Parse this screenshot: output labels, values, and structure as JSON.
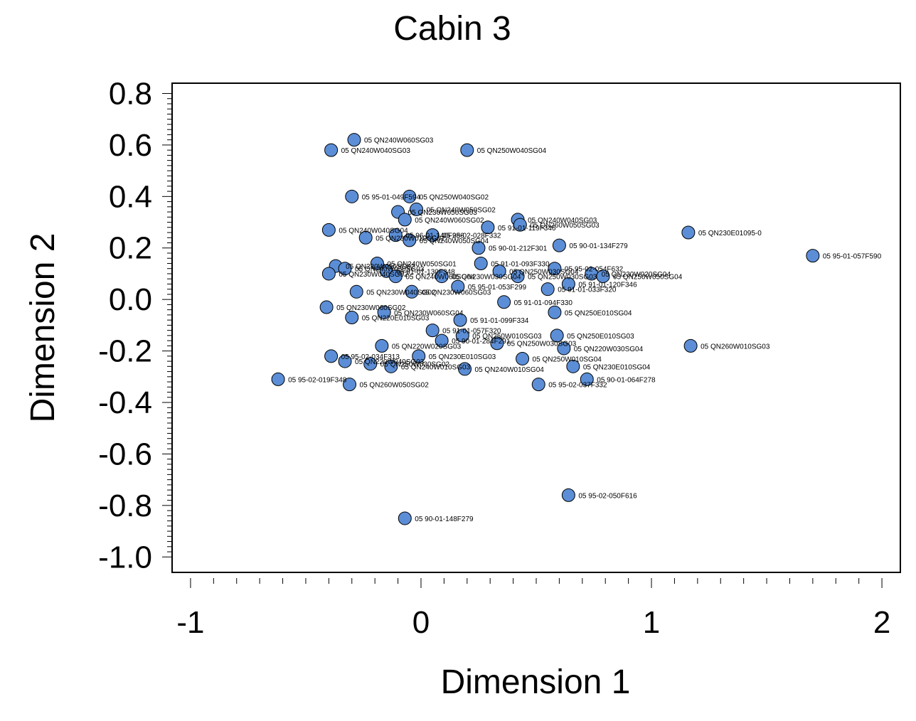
{
  "chart_data": {
    "type": "scatter",
    "title": "Cabin 3",
    "xlabel": "Dimension 1",
    "ylabel": "Dimension 2",
    "xlim": [
      -1.08,
      2.08
    ],
    "ylim": [
      -1.06,
      0.84
    ],
    "xticks": [
      "-1",
      "0",
      "1",
      "2"
    ],
    "yticks": [
      "0.8",
      "0.6",
      "0.4",
      "0.2",
      "0.0",
      "-0.2",
      "-0.4",
      "-0.6",
      "-0.8",
      "-1.0"
    ],
    "grid": false,
    "marker_color": "#5b8ed6",
    "points": [
      {
        "x": -0.29,
        "y": 0.62,
        "label": "05  QN240W060SG03"
      },
      {
        "x": -0.39,
        "y": 0.58,
        "label": "05  QN240W040SG03"
      },
      {
        "x": 0.2,
        "y": 0.58,
        "label": "05  QN250W040SG04"
      },
      {
        "x": -0.3,
        "y": 0.4,
        "label": "05  95-01-049F594"
      },
      {
        "x": -0.05,
        "y": 0.4,
        "label": "05  QN250W040SG02"
      },
      {
        "x": -0.02,
        "y": 0.35,
        "label": "05  QN240W050SG02"
      },
      {
        "x": -0.1,
        "y": 0.34,
        "label": "05  QN230W050SG03"
      },
      {
        "x": -0.07,
        "y": 0.31,
        "label": "05  QN240W060SG02"
      },
      {
        "x": 0.42,
        "y": 0.31,
        "label": "05  QN240W040SG03"
      },
      {
        "x": 0.43,
        "y": 0.29,
        "label": "05  QN260W050SG03"
      },
      {
        "x": -0.4,
        "y": 0.27,
        "label": "05  QN240W040SG04"
      },
      {
        "x": 0.29,
        "y": 0.28,
        "label": "05  91-01-119F346"
      },
      {
        "x": 1.16,
        "y": 0.26,
        "label": "05  QN230E01095-0"
      },
      {
        "x": -0.24,
        "y": 0.24,
        "label": "05  QN230W010SG02"
      },
      {
        "x": -0.11,
        "y": 0.25,
        "label": "05  96-01-140F286"
      },
      {
        "x": 0.05,
        "y": 0.25,
        "label": "05  95-02-028F332"
      },
      {
        "x": -0.05,
        "y": 0.23,
        "label": "05  QN240W050SG04"
      },
      {
        "x": 0.25,
        "y": 0.2,
        "label": "05  90-01-212F301"
      },
      {
        "x": 0.6,
        "y": 0.21,
        "label": "05  90-01-134F279"
      },
      {
        "x": 1.7,
        "y": 0.17,
        "label": "05  95-01-057F590"
      },
      {
        "x": -0.37,
        "y": 0.13,
        "label": "05  QN230W050SG02"
      },
      {
        "x": -0.33,
        "y": 0.12,
        "label": "05  QN240W050SG03"
      },
      {
        "x": -0.19,
        "y": 0.14,
        "label": "05  QN240W050SG01"
      },
      {
        "x": -0.15,
        "y": 0.11,
        "label": "05  91-01-130F348"
      },
      {
        "x": 0.26,
        "y": 0.14,
        "label": "05  91-01-093F330"
      },
      {
        "x": 0.58,
        "y": 0.12,
        "label": "05  95-02-054F632"
      },
      {
        "x": 0.74,
        "y": 0.1,
        "label": "05  QN230W020SG04"
      },
      {
        "x": -0.4,
        "y": 0.1,
        "label": "05  QN230W040SG02"
      },
      {
        "x": -0.11,
        "y": 0.09,
        "label": "05  QN240W060SG04"
      },
      {
        "x": 0.09,
        "y": 0.09,
        "label": "05  QN230W030SG04"
      },
      {
        "x": 0.34,
        "y": 0.11,
        "label": "05  QN250W030SG04"
      },
      {
        "x": 0.42,
        "y": 0.09,
        "label": "05  QN250W030SG03"
      },
      {
        "x": 0.79,
        "y": 0.09,
        "label": "05  QN250W050SG04"
      },
      {
        "x": -0.28,
        "y": 0.03,
        "label": "05  QN230W040SG02"
      },
      {
        "x": -0.04,
        "y": 0.03,
        "label": "05  QN230W060SG03"
      },
      {
        "x": 0.16,
        "y": 0.05,
        "label": "05  95-01-053F299"
      },
      {
        "x": 0.55,
        "y": 0.04,
        "label": "05  91-01-033F320"
      },
      {
        "x": 0.64,
        "y": 0.06,
        "label": "05  91-01-120F346"
      },
      {
        "x": -0.41,
        "y": -0.03,
        "label": "05  QN230W060SG02"
      },
      {
        "x": -0.16,
        "y": -0.05,
        "label": "05  QN230W060SG04"
      },
      {
        "x": 0.36,
        "y": -0.01,
        "label": "05  91-01-094F330"
      },
      {
        "x": 0.58,
        "y": -0.05,
        "label": "05  QN250E010SG04"
      },
      {
        "x": -0.3,
        "y": -0.07,
        "label": "05  QN220E010SG03"
      },
      {
        "x": 0.17,
        "y": -0.08,
        "label": "05  91-01-099F334"
      },
      {
        "x": 0.05,
        "y": -0.12,
        "label": "05  91-01-057F320"
      },
      {
        "x": 0.18,
        "y": -0.14,
        "label": "05  QN250W010SG03"
      },
      {
        "x": 0.59,
        "y": -0.14,
        "label": "05  QN250E010SG03"
      },
      {
        "x": 1.17,
        "y": -0.18,
        "label": "05  QN260W010SG03"
      },
      {
        "x": -0.39,
        "y": -0.22,
        "label": "05  95-02-034F313"
      },
      {
        "x": -0.17,
        "y": -0.18,
        "label": "05  QN220W020SG03"
      },
      {
        "x": 0.09,
        "y": -0.16,
        "label": "05  90-01-284F291"
      },
      {
        "x": 0.33,
        "y": -0.17,
        "label": "05  QN250W030SG03"
      },
      {
        "x": 0.62,
        "y": -0.19,
        "label": "05  QN220W030SG04"
      },
      {
        "x": -0.33,
        "y": -0.24,
        "label": "05  QN220W040SG03"
      },
      {
        "x": -0.22,
        "y": -0.25,
        "label": "05  QN250W030SG02"
      },
      {
        "x": -0.01,
        "y": -0.22,
        "label": "05  QN230E010SG03"
      },
      {
        "x": 0.44,
        "y": -0.23,
        "label": "05  QN250W010SG04"
      },
      {
        "x": 0.66,
        "y": -0.26,
        "label": "05  QN230E010SG04"
      },
      {
        "x": -0.62,
        "y": -0.31,
        "label": "05  95-02-019F348"
      },
      {
        "x": -0.13,
        "y": -0.26,
        "label": "05  QN240W010SG03"
      },
      {
        "x": 0.19,
        "y": -0.27,
        "label": "05  QN240W010SG04"
      },
      {
        "x": -0.31,
        "y": -0.33,
        "label": "05  QN260W050SG02"
      },
      {
        "x": 0.51,
        "y": -0.33,
        "label": "05  95-02-037F332"
      },
      {
        "x": 0.72,
        "y": -0.31,
        "label": "05  90-01-064F278"
      },
      {
        "x": 0.64,
        "y": -0.76,
        "label": "05  95-02-050F616"
      },
      {
        "x": -0.07,
        "y": -0.85,
        "label": "05  90-01-148F279"
      }
    ]
  }
}
